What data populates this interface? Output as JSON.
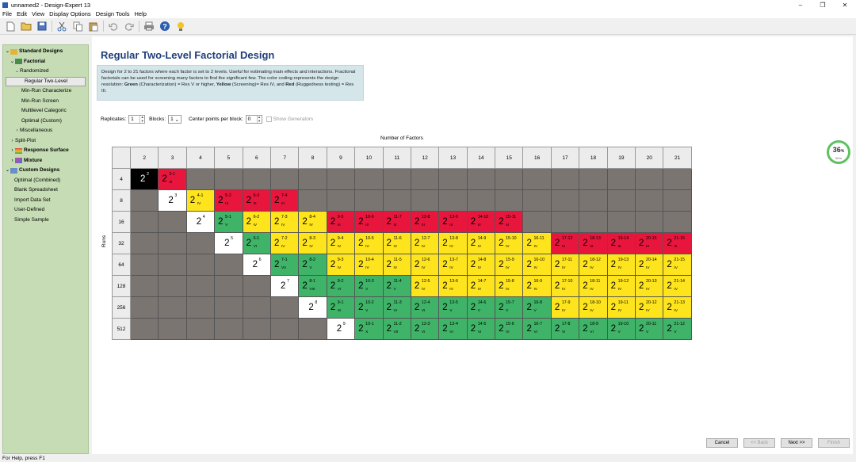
{
  "window": {
    "title": "unnamed2 - Design-Expert 13"
  },
  "menu": [
    "File",
    "Edit",
    "View",
    "Display Options",
    "Design Tools",
    "Help"
  ],
  "toolbar_icons": [
    "new-file-icon",
    "open-folder-icon",
    "save-icon",
    "cut-icon",
    "copy-icon",
    "paste-icon",
    "undo-icon",
    "redo-icon",
    "print-icon",
    "help-icon",
    "tip-icon"
  ],
  "sidebar": [
    {
      "label": "Standard Designs",
      "level": 0,
      "bold": true,
      "caret": "v",
      "icon": "folder"
    },
    {
      "label": "Factorial",
      "level": 1,
      "bold": true,
      "caret": "v",
      "icon": "grid"
    },
    {
      "label": "Randomized",
      "level": 2,
      "caret": "v"
    },
    {
      "label": "Regular Two-Level",
      "level": 3,
      "selected": true
    },
    {
      "label": "Min-Run Characterize",
      "level": 3
    },
    {
      "label": "Min-Run Screen",
      "level": 3
    },
    {
      "label": "Multilevel Categoric",
      "level": 3
    },
    {
      "label": "Optimal (Custom)",
      "level": 3
    },
    {
      "label": "Miscellaneous",
      "level": 2,
      "caret": ">"
    },
    {
      "label": "Split-Plot",
      "level": 1,
      "caret": ">"
    },
    {
      "label": "Response Surface",
      "level": 1,
      "bold": true,
      "caret": ">",
      "icon": "surface"
    },
    {
      "label": "Mixture",
      "level": 1,
      "bold": true,
      "caret": ">",
      "icon": "triangle"
    },
    {
      "label": "Custom Designs",
      "level": 0,
      "bold": true,
      "caret": "v",
      "icon": "custom"
    },
    {
      "label": "Optimal (Combined)",
      "level": 1
    },
    {
      "label": "Blank Spreadsheet",
      "level": 1
    },
    {
      "label": "Import Data Set",
      "level": 1
    },
    {
      "label": "User-Defined",
      "level": 1
    },
    {
      "label": "Simple Sample",
      "level": 1
    }
  ],
  "main": {
    "title": "Regular Two-Level Factorial Design",
    "desc_1": "Design for 2 to 21 factors where each factor is set to 2 levels. Useful for estimating main effects and interactions. Fractional factorials can be used for screening many factors to find the significant few. The color coding represents the design resolution: ",
    "desc_green": "Green",
    "desc_2": " (Characterization) = Res V or higher, ",
    "desc_yellow": "Yellow",
    "desc_3": " (Screening)= Res IV, and ",
    "desc_red": "Red",
    "desc_4": " (Ruggedness testing) = Res III."
  },
  "options": {
    "replicates_label": "Replicates:",
    "replicates_value": "1",
    "blocks_label": "Blocks:",
    "blocks_value": "1",
    "center_label": "Center points per block:",
    "center_value": "0",
    "show_generators_label": "Show Generators"
  },
  "table": {
    "factors_label": "Number of Factors",
    "runs_label": "Runs",
    "factors": [
      "2",
      "3",
      "4",
      "5",
      "6",
      "7",
      "8",
      "9",
      "10",
      "11",
      "12",
      "13",
      "14",
      "15",
      "16",
      "17",
      "18",
      "19",
      "20",
      "21"
    ],
    "runs": [
      "4",
      "8",
      "16",
      "32",
      "64",
      "128",
      "256",
      "512"
    ],
    "cells": [
      [
        {
          "c": "blk",
          "e": "2"
        },
        {
          "c": "red",
          "e": "3-1",
          "r": "III"
        }
      ],
      [
        null,
        {
          "c": "wh",
          "e": "3"
        },
        {
          "c": "yel",
          "e": "4-1",
          "r": "IV"
        },
        {
          "c": "red",
          "e": "5-2",
          "r": "III"
        },
        {
          "c": "red",
          "e": "6-3",
          "r": "III"
        },
        {
          "c": "red",
          "e": "7-4",
          "r": "III"
        }
      ],
      [
        null,
        null,
        {
          "c": "wh",
          "e": "4"
        },
        {
          "c": "grn",
          "e": "5-1",
          "r": "V"
        },
        {
          "c": "yel",
          "e": "6-2",
          "r": "IV"
        },
        {
          "c": "yel",
          "e": "7-3",
          "r": "IV"
        },
        {
          "c": "yel",
          "e": "8-4",
          "r": "IV"
        },
        {
          "c": "red",
          "e": "9-5",
          "r": "III"
        },
        {
          "c": "red",
          "e": "10-6",
          "r": "III"
        },
        {
          "c": "red",
          "e": "11-7",
          "r": "III"
        },
        {
          "c": "red",
          "e": "12-8",
          "r": "III"
        },
        {
          "c": "red",
          "e": "13-9",
          "r": "III"
        },
        {
          "c": "red",
          "e": "14-10",
          "r": "III"
        },
        {
          "c": "red",
          "e": "15-11",
          "r": "III"
        }
      ],
      [
        null,
        null,
        null,
        {
          "c": "wh",
          "e": "5"
        },
        {
          "c": "grn",
          "e": "6-1",
          "r": "VI"
        },
        {
          "c": "yel",
          "e": "7-2",
          "r": "IV"
        },
        {
          "c": "yel",
          "e": "8-3",
          "r": "IV"
        },
        {
          "c": "yel",
          "e": "9-4",
          "r": "IV"
        },
        {
          "c": "yel",
          "e": "10-5",
          "r": "IV"
        },
        {
          "c": "yel",
          "e": "11-6",
          "r": "IV"
        },
        {
          "c": "yel",
          "e": "12-7",
          "r": "IV"
        },
        {
          "c": "yel",
          "e": "13-8",
          "r": "IV"
        },
        {
          "c": "yel",
          "e": "14-9",
          "r": "IV"
        },
        {
          "c": "yel",
          "e": "15-10",
          "r": "IV"
        },
        {
          "c": "yel",
          "e": "16-11",
          "r": "IV"
        },
        {
          "c": "red",
          "e": "17-12",
          "r": "III"
        },
        {
          "c": "red",
          "e": "18-13",
          "r": "III"
        },
        {
          "c": "red",
          "e": "19-14",
          "r": "III"
        },
        {
          "c": "red",
          "e": "20-15",
          "r": "III"
        },
        {
          "c": "red",
          "e": "21-16",
          "r": "III"
        }
      ],
      [
        null,
        null,
        null,
        null,
        {
          "c": "wh",
          "e": "6"
        },
        {
          "c": "grn",
          "e": "7-1",
          "r": "VII"
        },
        {
          "c": "grn",
          "e": "8-2",
          "r": "V"
        },
        {
          "c": "yel",
          "e": "9-3",
          "r": "IV"
        },
        {
          "c": "yel",
          "e": "10-4",
          "r": "IV"
        },
        {
          "c": "yel",
          "e": "11-5",
          "r": "IV"
        },
        {
          "c": "yel",
          "e": "12-6",
          "r": "IV"
        },
        {
          "c": "yel",
          "e": "13-7",
          "r": "IV"
        },
        {
          "c": "yel",
          "e": "14-8",
          "r": "IV"
        },
        {
          "c": "yel",
          "e": "15-9",
          "r": "IV"
        },
        {
          "c": "yel",
          "e": "16-10",
          "r": "IV"
        },
        {
          "c": "yel",
          "e": "17-11",
          "r": "IV"
        },
        {
          "c": "yel",
          "e": "18-12",
          "r": "IV"
        },
        {
          "c": "yel",
          "e": "19-13",
          "r": "IV"
        },
        {
          "c": "yel",
          "e": "20-14",
          "r": "IV"
        },
        {
          "c": "yel",
          "e": "21-15",
          "r": "IV"
        }
      ],
      [
        null,
        null,
        null,
        null,
        null,
        {
          "c": "wh",
          "e": "7"
        },
        {
          "c": "grn",
          "e": "8-1",
          "r": "VIII"
        },
        {
          "c": "grn",
          "e": "9-2",
          "r": "VI"
        },
        {
          "c": "grn",
          "e": "10-3",
          "r": "V"
        },
        {
          "c": "grn",
          "e": "11-4",
          "r": "V"
        },
        {
          "c": "yel",
          "e": "12-5",
          "r": "IV"
        },
        {
          "c": "yel",
          "e": "13-6",
          "r": "IV"
        },
        {
          "c": "yel",
          "e": "14-7",
          "r": "IV"
        },
        {
          "c": "yel",
          "e": "15-8",
          "r": "IV"
        },
        {
          "c": "yel",
          "e": "16-9",
          "r": "IV"
        },
        {
          "c": "yel",
          "e": "17-10",
          "r": "IV"
        },
        {
          "c": "yel",
          "e": "18-11",
          "r": "IV"
        },
        {
          "c": "yel",
          "e": "19-12",
          "r": "IV"
        },
        {
          "c": "yel",
          "e": "20-13",
          "r": "IV"
        },
        {
          "c": "yel",
          "e": "21-14",
          "r": "IV"
        }
      ],
      [
        null,
        null,
        null,
        null,
        null,
        null,
        {
          "c": "wh",
          "e": "8"
        },
        {
          "c": "grn",
          "e": "9-1",
          "r": "IX"
        },
        {
          "c": "grn",
          "e": "10-2",
          "r": "V"
        },
        {
          "c": "grn",
          "e": "11-3",
          "r": "VI"
        },
        {
          "c": "grn",
          "e": "12-4",
          "r": "VI"
        },
        {
          "c": "grn",
          "e": "13-5",
          "r": "V"
        },
        {
          "c": "grn",
          "e": "14-6",
          "r": "V"
        },
        {
          "c": "grn",
          "e": "15-7",
          "r": "V"
        },
        {
          "c": "grn",
          "e": "16-8",
          "r": "V"
        },
        {
          "c": "yel",
          "e": "17-9",
          "r": "IV"
        },
        {
          "c": "yel",
          "e": "18-10",
          "r": "IV"
        },
        {
          "c": "yel",
          "e": "19-11",
          "r": "IV"
        },
        {
          "c": "yel",
          "e": "20-12",
          "r": "IV"
        },
        {
          "c": "yel",
          "e": "21-13",
          "r": "IV"
        }
      ],
      [
        null,
        null,
        null,
        null,
        null,
        null,
        null,
        {
          "c": "wh",
          "e": "9"
        },
        {
          "c": "grn",
          "e": "10-1",
          "r": "X"
        },
        {
          "c": "grn",
          "e": "11-2",
          "r": "VII"
        },
        {
          "c": "grn",
          "e": "12-3",
          "r": "VI"
        },
        {
          "c": "grn",
          "e": "13-4",
          "r": "VI"
        },
        {
          "c": "grn",
          "e": "14-5",
          "r": "VI"
        },
        {
          "c": "grn",
          "e": "15-6",
          "r": "VI"
        },
        {
          "c": "grn",
          "e": "16-7",
          "r": "VI"
        },
        {
          "c": "grn",
          "e": "17-8",
          "r": "VI"
        },
        {
          "c": "grn",
          "e": "18-9",
          "r": "VI"
        },
        {
          "c": "grn",
          "e": "19-10",
          "r": "V"
        },
        {
          "c": "grn",
          "e": "20-11",
          "r": "V"
        },
        {
          "c": "grn",
          "e": "21-12",
          "r": "V"
        }
      ]
    ]
  },
  "buttons": {
    "cancel": "Cancel",
    "back": "<< Back",
    "next": "Next >>",
    "finish": "Finish"
  },
  "gauge": {
    "percent": "36",
    "unit": "%",
    "rate": "0K/s"
  },
  "status": "For Help, press F1"
}
